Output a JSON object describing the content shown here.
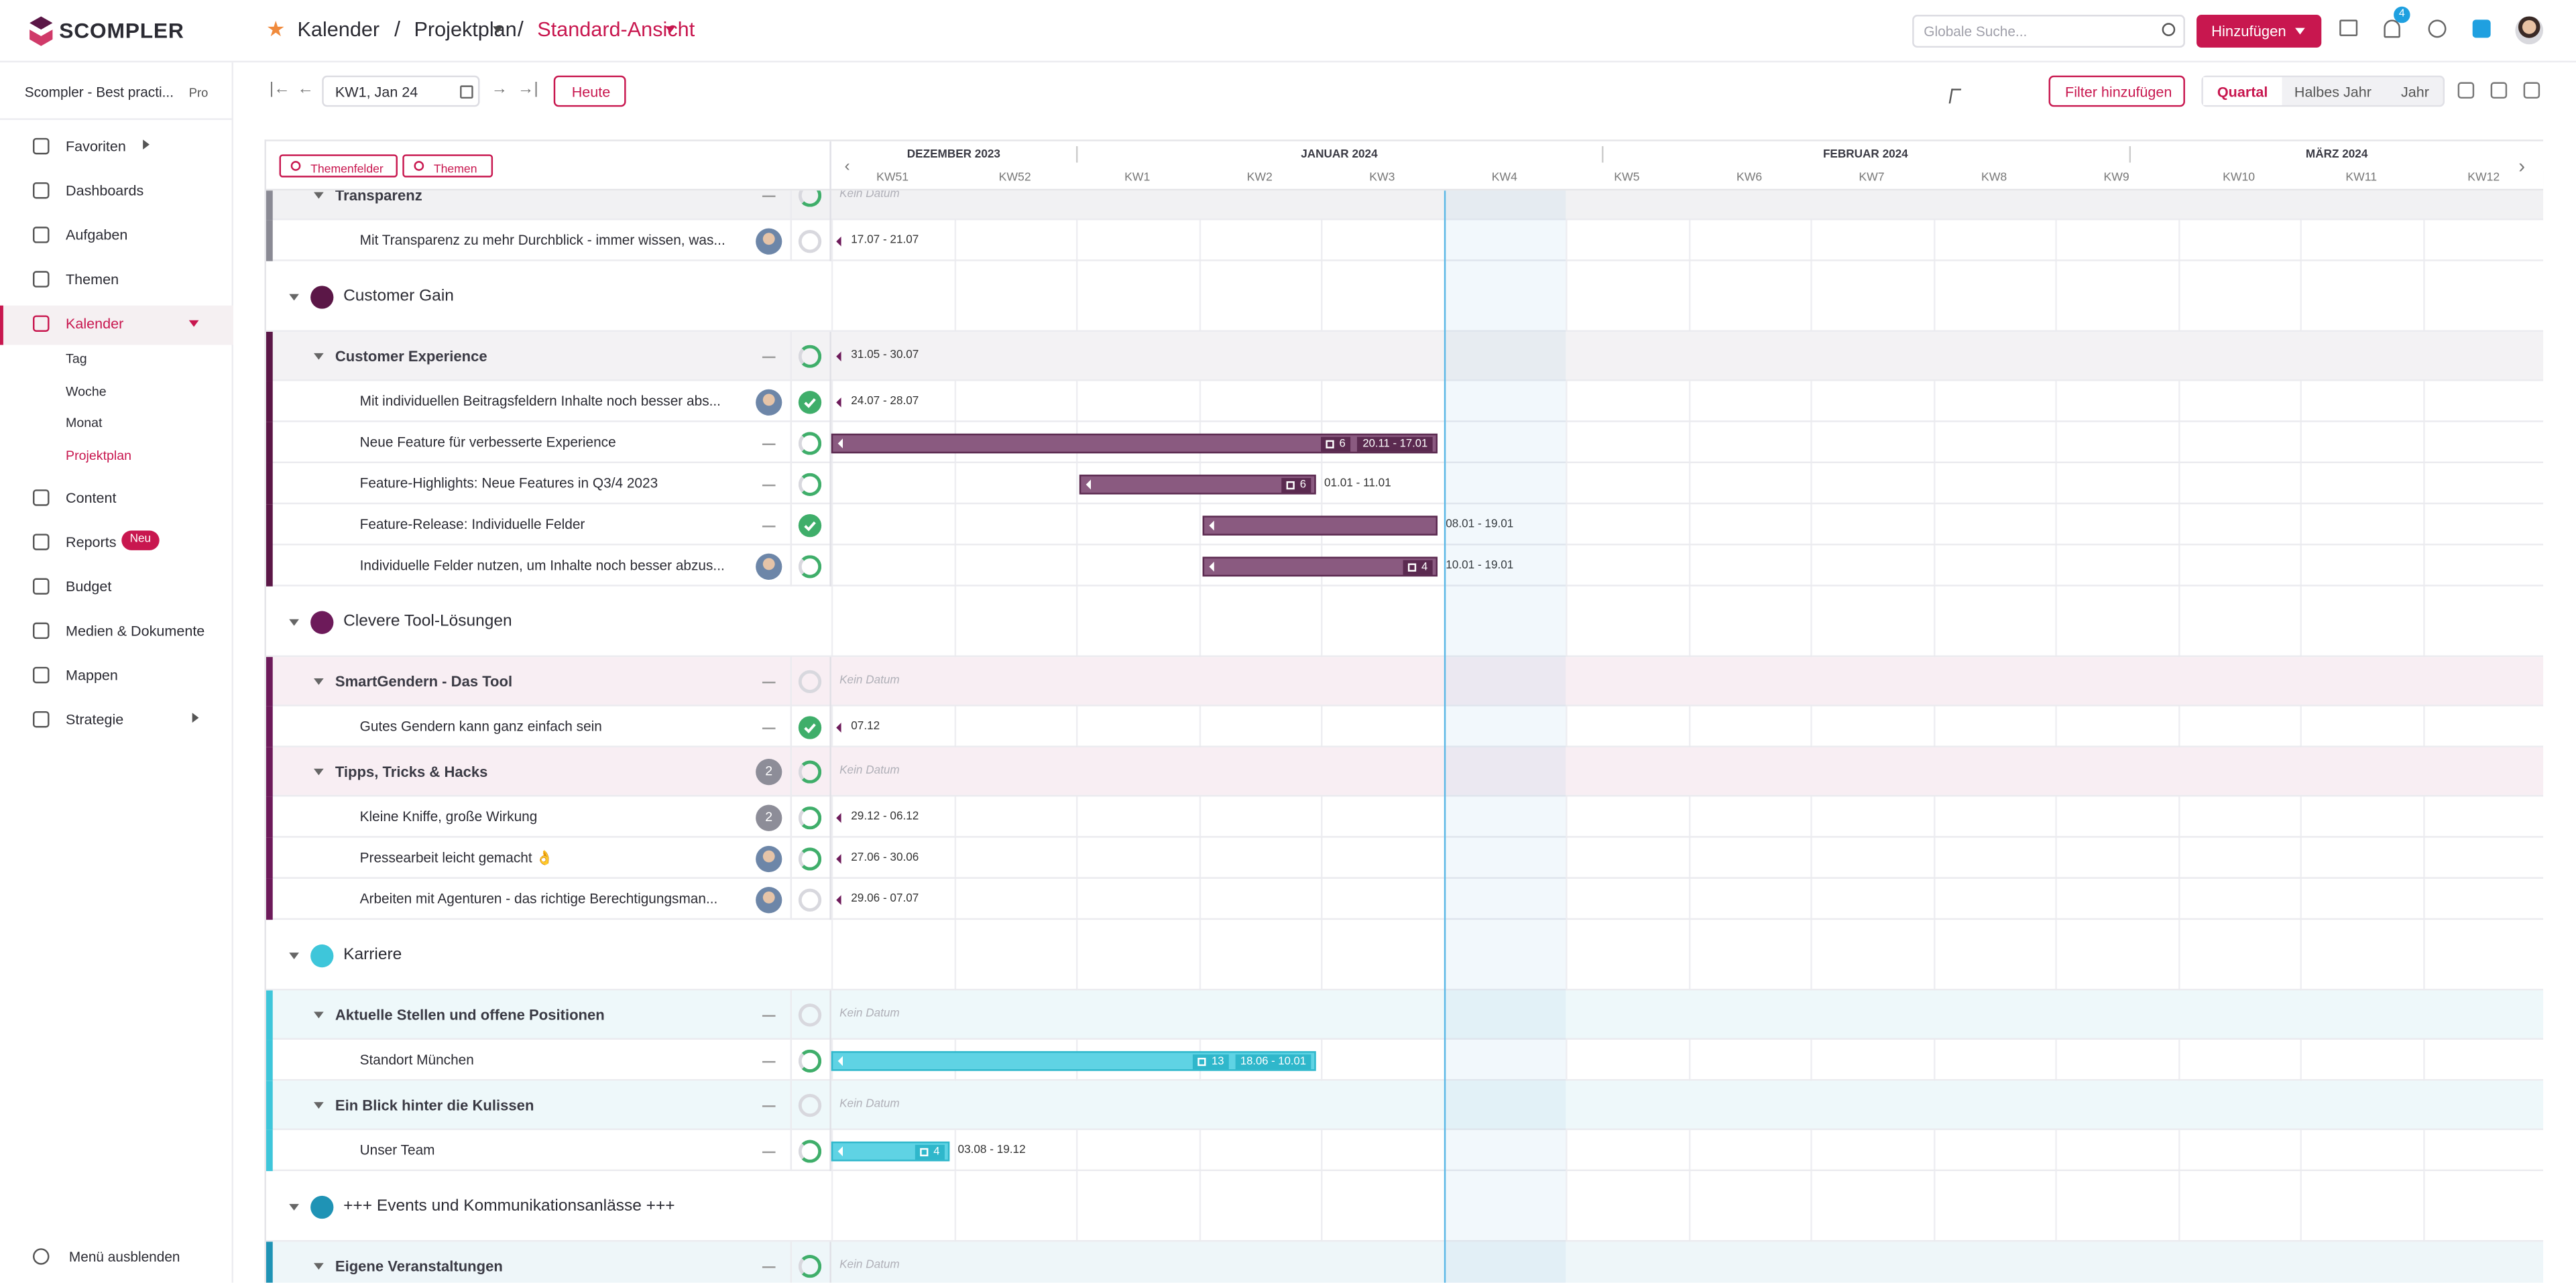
{
  "header": {
    "brand": "SCOMPLER",
    "breadcrumb": [
      "Kalender",
      "Projektplan",
      "Standard-Ansicht"
    ],
    "search_placeholder": "Globale Suche...",
    "add_button": "Hinzufügen",
    "notification_count": 4
  },
  "sidebar": {
    "workspace": "Scompler - Best practi...",
    "plan": "Pro",
    "items": [
      {
        "label": "Favoriten",
        "arrow": true
      },
      {
        "label": "Dashboards"
      },
      {
        "label": "Aufgaben"
      },
      {
        "label": "Themen"
      },
      {
        "label": "Kalender",
        "active": true,
        "children": [
          "Tag",
          "Woche",
          "Monat",
          "Projektplan"
        ]
      },
      {
        "label": "Content"
      },
      {
        "label": "Reports",
        "badge": "Neu"
      },
      {
        "label": "Budget"
      },
      {
        "label": "Medien & Dokumente"
      },
      {
        "label": "Mappen"
      },
      {
        "label": "Strategie",
        "arrow": true
      }
    ],
    "footer": "Menü ausblenden"
  },
  "toolbar": {
    "week": "KW1, Jan 24",
    "today": "Heute",
    "filter": "Filter hinzufügen",
    "views": [
      "Quartal",
      "Halbes Jahr",
      "Jahr"
    ]
  },
  "gantt": {
    "filters": [
      "Themenfelder",
      "Themen"
    ],
    "months": [
      "DEZEMBER 2023",
      "JANUAR 2024",
      "FEBRUAR 2024",
      "MÄRZ 2024"
    ],
    "weeks": [
      "KW51",
      "KW52",
      "KW1",
      "KW2",
      "KW3",
      "KW4",
      "KW5",
      "KW6",
      "KW7",
      "KW8",
      "KW9",
      "KW10",
      "KW11",
      "KW12"
    ],
    "no_date": "Kein Datum",
    "rows": [
      {
        "level": 1,
        "label": "Transparenz",
        "status": "progress"
      },
      {
        "level": 2,
        "label": "Mit Transparenz zu mehr Durchblick - immer wissen, was...",
        "avatar": true,
        "status": "empty",
        "date": "17.07 - 21.07"
      },
      {
        "level": 0,
        "label": "Customer Gain",
        "color": "#5b1747"
      },
      {
        "level": 1,
        "label": "Customer Experience",
        "status": "progress",
        "date": "31.05 - 30.07"
      },
      {
        "level": 2,
        "label": "Mit individuellen Beitragsfeldern Inhalte noch besser abs...",
        "avatar": true,
        "status": "done",
        "date": "24.07 - 28.07"
      },
      {
        "level": 2,
        "label": "Neue Feature für verbesserte Experience",
        "status": "progress",
        "count": 6,
        "date": "20.11 - 17.01"
      },
      {
        "level": 2,
        "label": "Feature-Highlights: Neue Features in Q3/4 2023",
        "status": "progress",
        "count": 6,
        "date": "01.01 - 11.01"
      },
      {
        "level": 2,
        "label": "Feature-Release: Individuelle Felder",
        "status": "done",
        "date": "08.01 - 19.01"
      },
      {
        "level": 2,
        "label": "Individuelle Felder nutzen, um Inhalte noch besser abzus...",
        "avatar": true,
        "status": "progress",
        "count": 4,
        "date": "10.01 - 19.01"
      },
      {
        "level": 0,
        "label": "Clevere Tool-Lösungen",
        "color": "#6d1a5a"
      },
      {
        "level": 1,
        "label": "SmartGendern - Das Tool",
        "status": "empty"
      },
      {
        "level": 2,
        "label": "Gutes Gendern kann ganz einfach sein",
        "status": "done",
        "date": "07.12"
      },
      {
        "level": 1,
        "label": "Tipps, Tricks & Hacks",
        "badge": 2,
        "status": "progress"
      },
      {
        "level": 2,
        "label": "Kleine Kniffe, große Wirkung",
        "badge": 2,
        "status": "progress",
        "date": "29.12 - 06.12"
      },
      {
        "level": 2,
        "label": "Pressearbeit leicht gemacht 👌",
        "avatar": true,
        "status": "progress",
        "date": "27.06 - 30.06"
      },
      {
        "level": 2,
        "label": "Arbeiten mit Agenturen - das richtige Berechtigungsman...",
        "avatar": true,
        "status": "empty",
        "date": "29.06 - 07.07"
      },
      {
        "level": 0,
        "label": "Karriere",
        "color": "#3ec6da"
      },
      {
        "level": 1,
        "label": "Aktuelle Stellen und offene Positionen",
        "status": "empty"
      },
      {
        "level": 2,
        "label": "Standort München",
        "status": "progress",
        "count": 13,
        "date": "18.06 - 10.01"
      },
      {
        "level": 1,
        "label": "Ein Blick hinter die Kulissen",
        "status": "empty"
      },
      {
        "level": 2,
        "label": "Unser Team",
        "status": "progress",
        "count": 4,
        "date": "03.08 - 19.12"
      },
      {
        "level": 0,
        "label": "+++ Events und Kommunikationsanlässe +++",
        "color": "#1f93b5"
      },
      {
        "level": 1,
        "label": "Eigene Veranstaltungen",
        "status": "progress"
      }
    ]
  }
}
